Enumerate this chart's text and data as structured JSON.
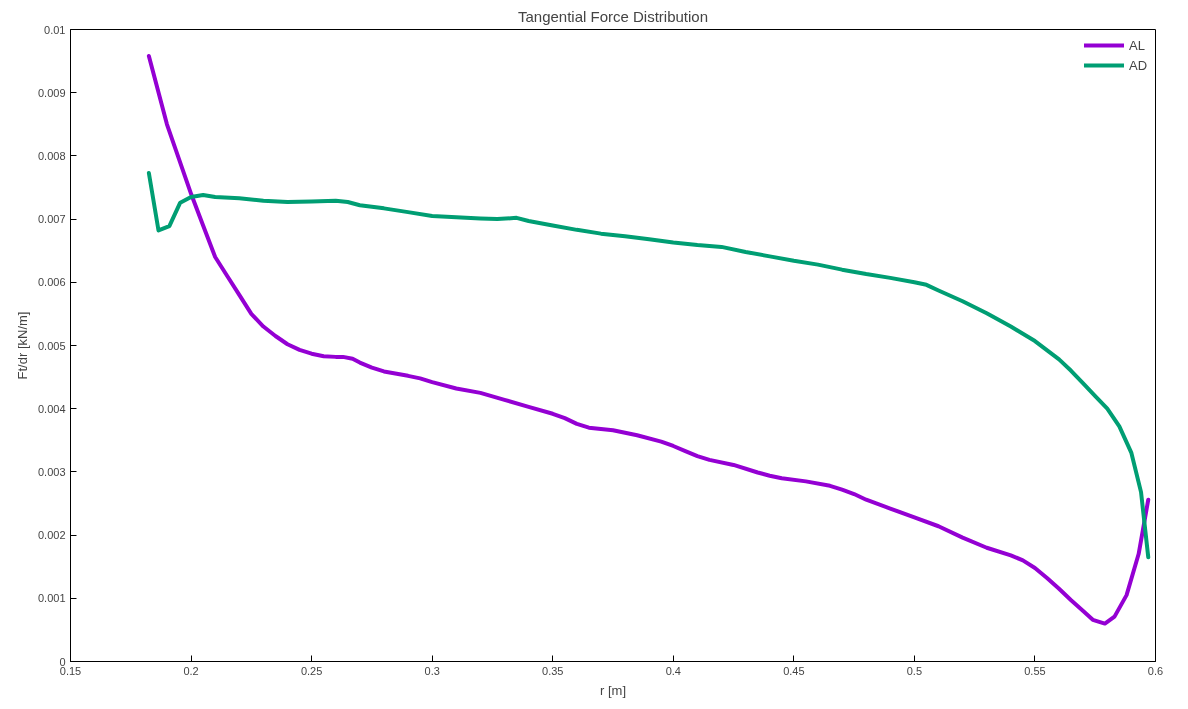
{
  "chart_data": {
    "type": "line",
    "title": "Tangential Force Distribution",
    "xlabel": "r [m]",
    "ylabel": "Ft/dr [kN/m]",
    "xlim": [
      0.15,
      0.6
    ],
    "ylim": [
      0,
      0.01
    ],
    "xticks": [
      0.15,
      0.2,
      0.25,
      0.3,
      0.35,
      0.4,
      0.45,
      0.5,
      0.55,
      0.6
    ],
    "yticks": [
      0,
      0.001,
      0.002,
      0.003,
      0.004,
      0.005,
      0.006,
      0.007,
      0.008,
      0.009,
      0.01
    ],
    "grid": false,
    "legend": "top right",
    "marker": "none",
    "line_style": "solid",
    "series": [
      {
        "name": "AL",
        "color": "#9400d3",
        "x": [
          0.1825,
          0.19,
          0.2,
          0.205,
          0.21,
          0.215,
          0.22,
          0.225,
          0.23,
          0.235,
          0.24,
          0.245,
          0.25,
          0.255,
          0.26,
          0.263,
          0.267,
          0.27,
          0.275,
          0.28,
          0.29,
          0.295,
          0.3,
          0.31,
          0.32,
          0.33,
          0.34,
          0.35,
          0.355,
          0.36,
          0.365,
          0.375,
          0.385,
          0.395,
          0.4,
          0.405,
          0.41,
          0.415,
          0.425,
          0.435,
          0.44,
          0.445,
          0.455,
          0.465,
          0.47,
          0.475,
          0.48,
          0.49,
          0.5,
          0.51,
          0.52,
          0.53,
          0.54,
          0.545,
          0.55,
          0.555,
          0.56,
          0.565,
          0.57,
          0.574,
          0.579,
          0.583,
          0.588,
          0.593,
          0.597
        ],
        "values": [
          0.00958,
          0.0085,
          0.0074,
          0.0069,
          0.0064,
          0.0061,
          0.0058,
          0.0055,
          0.0053,
          0.00515,
          0.00502,
          0.00493,
          0.00487,
          0.00483,
          0.00482,
          0.00482,
          0.00479,
          0.00473,
          0.00465,
          0.00459,
          0.00452,
          0.00448,
          0.00442,
          0.00432,
          0.00425,
          0.00414,
          0.00403,
          0.00392,
          0.00385,
          0.00376,
          0.0037,
          0.00366,
          0.00358,
          0.00348,
          0.00341,
          0.00333,
          0.00325,
          0.00319,
          0.00311,
          0.00299,
          0.00294,
          0.0029,
          0.00285,
          0.00278,
          0.00272,
          0.00265,
          0.00256,
          0.00242,
          0.00228,
          0.00214,
          0.00196,
          0.0018,
          0.00168,
          0.0016,
          0.00148,
          0.00132,
          0.00115,
          0.00097,
          0.0008,
          0.00066,
          0.0006,
          0.00071,
          0.00105,
          0.0017,
          0.00256
        ]
      },
      {
        "name": "AD",
        "color": "#009e73",
        "x": [
          0.1825,
          0.1865,
          0.191,
          0.1955,
          0.2,
          0.205,
          0.21,
          0.22,
          0.23,
          0.24,
          0.25,
          0.26,
          0.265,
          0.27,
          0.28,
          0.29,
          0.3,
          0.31,
          0.32,
          0.327,
          0.335,
          0.34,
          0.35,
          0.36,
          0.37,
          0.38,
          0.39,
          0.4,
          0.41,
          0.42,
          0.43,
          0.44,
          0.45,
          0.46,
          0.47,
          0.48,
          0.49,
          0.5,
          0.505,
          0.51,
          0.52,
          0.53,
          0.54,
          0.55,
          0.56,
          0.565,
          0.57,
          0.575,
          0.58,
          0.585,
          0.59,
          0.594,
          0.597
        ],
        "values": [
          0.00773,
          0.00682,
          0.00689,
          0.00726,
          0.00735,
          0.00738,
          0.00735,
          0.00733,
          0.00729,
          0.00727,
          0.00728,
          0.00729,
          0.00727,
          0.00722,
          0.00717,
          0.00711,
          0.00705,
          0.00703,
          0.00701,
          0.007,
          0.00702,
          0.00697,
          0.0069,
          0.00683,
          0.00677,
          0.00673,
          0.00668,
          0.00663,
          0.00659,
          0.00656,
          0.00648,
          0.00641,
          0.00634,
          0.00628,
          0.0062,
          0.00613,
          0.00607,
          0.006,
          0.00596,
          0.00587,
          0.0057,
          0.00551,
          0.0053,
          0.00507,
          0.00478,
          0.0046,
          0.0044,
          0.0042,
          0.004,
          0.00372,
          0.0033,
          0.00268,
          0.00165
        ]
      }
    ]
  }
}
